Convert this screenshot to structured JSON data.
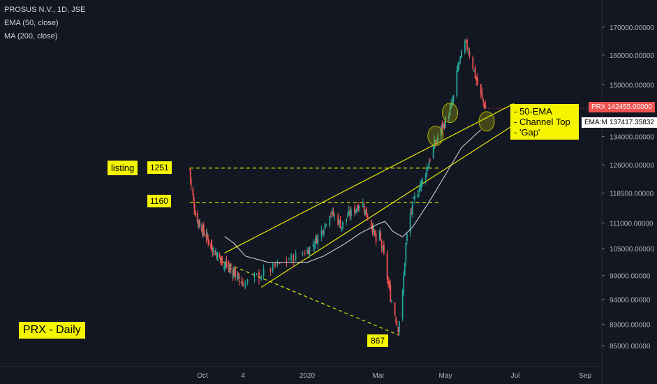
{
  "header": {
    "symbol_line": "PROSUS N.V., 1D, JSE",
    "indicator_1": "EMA (50, close)",
    "indicator_2": "MA (200, close)"
  },
  "annotations": {
    "listing": "listing",
    "level_1251": "1251",
    "level_1160": "1160",
    "low_867": "867",
    "title": "PRX - Daily",
    "note_lines": [
      "- 50-EMA",
      "- Channel Top",
      "- 'Gap'"
    ]
  },
  "price_tags": {
    "last_label": "PRX",
    "last_value": "142455.00000",
    "ema_label": "EMA:MA",
    "ema_value": "137417.35832"
  },
  "colors": {
    "background": "#131722",
    "up": "#26a69a",
    "down": "#ef5350",
    "annotation": "#f5f500",
    "trendline": "#e6e600",
    "ma_line": "#e0e0e0",
    "price_tag": "#ef5350"
  },
  "chart_data": {
    "type": "candlestick",
    "title": "PROSUS N.V., 1D, JSE",
    "y_ticks": [
      170000,
      160000,
      150000,
      142455,
      134000,
      126000,
      118500,
      111000,
      105000,
      99000,
      94000,
      89000,
      85000
    ],
    "y_tick_labels": [
      "170000.00000",
      "160000.00000",
      "150000.00000",
      "142455.00000",
      "134000.00000",
      "126000.00000",
      "118500.00000",
      "111000.00000",
      "105000.00000",
      "99000.00000",
      "94000.00000",
      "89000.00000",
      "85000.00000"
    ],
    "x_tick_labels": [
      "Oct",
      "4",
      "2020",
      "Mar",
      "May",
      "Jul",
      "Sep"
    ],
    "close_path": [
      [
        "2019-09-11",
        124800
      ],
      [
        "2019-09-13",
        120000
      ],
      [
        "2019-09-16",
        117500
      ],
      [
        "2019-09-20",
        113000
      ],
      [
        "2019-09-25",
        111200
      ],
      [
        "2019-09-30",
        109800
      ],
      [
        "2019-10-04",
        108500
      ],
      [
        "2019-10-08",
        107800
      ],
      [
        "2019-10-12",
        106300
      ],
      [
        "2019-10-18",
        104800
      ],
      [
        "2019-10-24",
        103700
      ],
      [
        "2019-10-31",
        102300
      ],
      [
        "2019-11-04",
        101700
      ],
      [
        "2019-11-10",
        100900
      ],
      [
        "2019-11-16",
        100200
      ],
      [
        "2019-11-24",
        99200
      ],
      [
        "2019-11-28",
        98300
      ],
      [
        "2019-12-02",
        97300
      ],
      [
        "2019-12-06",
        97600
      ],
      [
        "2019-12-10",
        98800
      ],
      [
        "2019-12-16",
        100300
      ],
      [
        "2019-12-24",
        102600
      ],
      [
        "2020-01-01",
        104500
      ],
      [
        "2020-01-08",
        106800
      ],
      [
        "2020-01-15",
        110200
      ],
      [
        "2020-01-20",
        113700
      ],
      [
        "2020-01-25",
        112400
      ],
      [
        "2020-01-30",
        110300
      ],
      [
        "2020-02-04",
        112700
      ],
      [
        "2020-02-10",
        114300
      ],
      [
        "2020-02-16",
        116400
      ],
      [
        "2020-02-20",
        113000
      ],
      [
        "2020-02-25",
        110000
      ],
      [
        "2020-02-28",
        106500
      ],
      [
        "2020-03-02",
        108000
      ],
      [
        "2020-03-06",
        103000
      ],
      [
        "2020-03-09",
        98500
      ],
      [
        "2020-03-12",
        94500
      ],
      [
        "2020-03-16",
        91000
      ],
      [
        "2020-03-19",
        88300
      ],
      [
        "2020-03-23",
        95000
      ],
      [
        "2020-03-26",
        106000
      ],
      [
        "2020-03-30",
        113200
      ],
      [
        "2020-04-03",
        117000
      ],
      [
        "2020-04-07",
        120000
      ],
      [
        "2020-04-11",
        122400
      ],
      [
        "2020-04-15",
        126000
      ],
      [
        "2020-04-19",
        130000
      ],
      [
        "2020-04-23",
        133000
      ],
      [
        "2020-04-27",
        136200
      ],
      [
        "2020-05-02",
        139200
      ],
      [
        "2020-05-06",
        143000
      ],
      [
        "2020-05-09",
        147400
      ],
      [
        "2020-05-12",
        156400
      ],
      [
        "2020-05-15",
        160000
      ],
      [
        "2020-05-18",
        163800
      ],
      [
        "2020-05-21",
        162000
      ],
      [
        "2020-05-24",
        157800
      ],
      [
        "2020-05-27",
        153000
      ],
      [
        "2020-05-30",
        148500
      ],
      [
        "2020-06-02",
        145400
      ],
      [
        "2020-06-05",
        142455
      ]
    ],
    "ema_50": [
      [
        "2019-11-05",
        107800
      ],
      [
        "2019-11-20",
        106200
      ],
      [
        "2019-12-05",
        103300
      ],
      [
        "2019-12-15",
        101900
      ],
      [
        "2020-01-01",
        101900
      ],
      [
        "2020-01-15",
        103300
      ],
      [
        "2020-02-01",
        106000
      ],
      [
        "2020-02-15",
        108600
      ],
      [
        "2020-03-01",
        110800
      ],
      [
        "2020-03-07",
        111400
      ],
      [
        "2020-03-14",
        109000
      ],
      [
        "2020-03-23",
        107700
      ],
      [
        "2020-04-01",
        110000
      ],
      [
        "2020-04-15",
        115700
      ],
      [
        "2020-05-01",
        123300
      ],
      [
        "2020-05-15",
        130800
      ],
      [
        "2020-06-01",
        136000
      ]
    ],
    "levels": [
      {
        "label": "1251",
        "value": 125100,
        "from": "2019-09-11",
        "to": "2020-04-27"
      },
      {
        "label": "1160",
        "value": 116000,
        "from": "2019-09-11",
        "to": "2020-04-27"
      }
    ],
    "trendlines": [
      {
        "from": [
          "2019-11-05",
          104000
        ],
        "to": [
          "2020-06-30",
          144000
        ]
      },
      {
        "from": [
          "2019-12-12",
          96500
        ],
        "to": [
          "2020-06-30",
          137500
        ]
      },
      {
        "from": [
          "2019-11-02",
          102000
        ],
        "to": [
          "2020-03-19",
          87000
        ],
        "style": "dashed"
      }
    ],
    "markers": [
      {
        "at": [
          "2020-04-22",
          134200
        ]
      },
      {
        "at": [
          "2020-05-05",
          141100
        ]
      },
      {
        "at": [
          "2020-06-06",
          138500
        ]
      }
    ],
    "last_price": 142455,
    "ema_value": 137417.35832,
    "grid": false
  }
}
